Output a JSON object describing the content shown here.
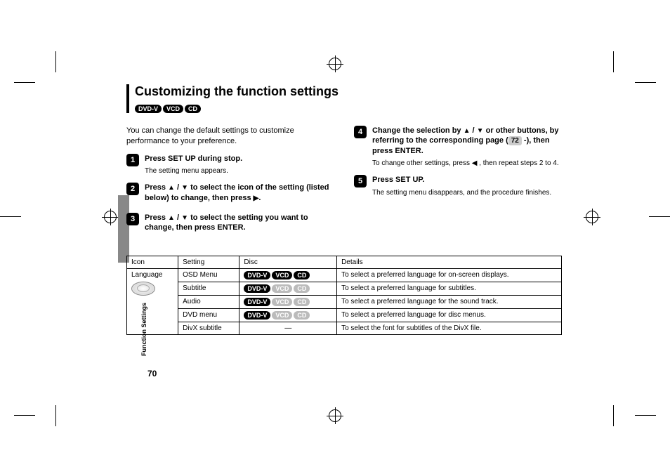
{
  "side_label": "Function Settings",
  "page_number": "70",
  "title": "Customizing the function settings",
  "title_badges": [
    "DVD-V",
    "VCD",
    "CD"
  ],
  "intro": "You can change the default settings to customize performance to your preference.",
  "steps": [
    {
      "num": "1",
      "title_parts": [
        "Press SET UP during stop."
      ],
      "sub": "The setting menu appears."
    },
    {
      "num": "2",
      "title_parts": [
        "Press ",
        "▲",
        " / ",
        "▼",
        " to select the icon of the setting (listed below) to change, then press ",
        "▶",
        "."
      ]
    },
    {
      "num": "3",
      "title_parts": [
        "Press ",
        "▲",
        " / ",
        "▼",
        " to select the setting you want to change, then press ENTER."
      ]
    },
    {
      "num": "4",
      "title_parts": [
        "Change the selection by ",
        "▲",
        " / ",
        "▼",
        " or other buttons, by referring to the corresponding page (",
        "PGREF:72",
        " -), then press ENTER."
      ],
      "sub_parts": [
        "To change other settings, press ",
        "◀",
        " , then repeat steps 2 to 4."
      ]
    },
    {
      "num": "5",
      "title_parts": [
        "Press SET UP."
      ],
      "sub": "The setting menu disappears, and the procedure finishes."
    }
  ],
  "table": {
    "headers": [
      "Icon",
      "Setting",
      "Disc",
      "Details"
    ],
    "icon_label": "Language",
    "rows": [
      {
        "setting": "OSD Menu",
        "disc": [
          {
            "t": "DVD-V",
            "dim": false
          },
          {
            "t": "VCD",
            "dim": false
          },
          {
            "t": "CD",
            "dim": false
          }
        ],
        "details": "To select a preferred language for on-screen displays."
      },
      {
        "setting": "Subtitle",
        "disc": [
          {
            "t": "DVD-V",
            "dim": false
          },
          {
            "t": "VCD",
            "dim": true
          },
          {
            "t": "CD",
            "dim": true
          }
        ],
        "details": "To select a preferred language for subtitles."
      },
      {
        "setting": "Audio",
        "disc": [
          {
            "t": "DVD-V",
            "dim": false
          },
          {
            "t": "VCD",
            "dim": true
          },
          {
            "t": "CD",
            "dim": true
          }
        ],
        "details": "To select a preferred language for the sound track."
      },
      {
        "setting": "DVD menu",
        "disc": [
          {
            "t": "DVD-V",
            "dim": false
          },
          {
            "t": "VCD",
            "dim": true
          },
          {
            "t": "CD",
            "dim": true
          }
        ],
        "details": "To select a preferred language for disc menus."
      },
      {
        "setting": "DivX subtitle",
        "disc_text": "—",
        "details": "To select the font for subtitles of the DivX file."
      }
    ]
  }
}
